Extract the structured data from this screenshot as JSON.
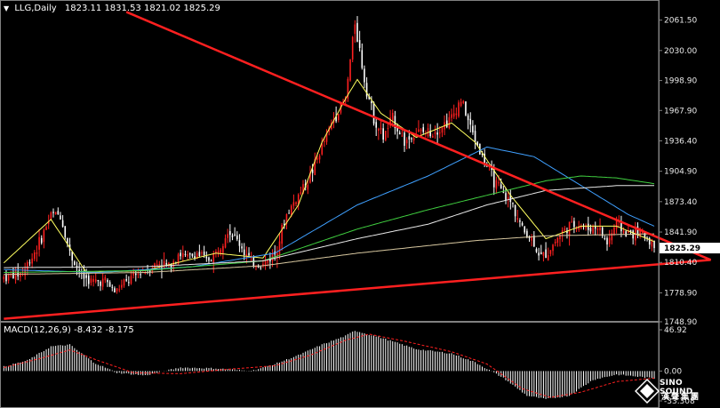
{
  "header": {
    "symbol": "LLG,Daily",
    "ohlc": "1823.11 1831.53 1821.02 1825.29"
  },
  "price_axis": {
    "ticks": [
      "2061.50",
      "2030.00",
      "1998.90",
      "1967.90",
      "1936.40",
      "1904.90",
      "1873.40",
      "1841.90",
      "1810.40",
      "1778.90",
      "1748.90"
    ],
    "current_price": "1825.29"
  },
  "macd_panel": {
    "label": "MACD(12,26,9) -8.432 -8.175",
    "ticks": [
      "46.92",
      "0.00",
      "-33.308"
    ]
  },
  "logo": {
    "name": "SINO SOUND",
    "sub": "漢聲集團"
  },
  "colors": {
    "background": "#000000",
    "up_candle": "#ff2020",
    "down_candle": "#ffffff",
    "trendline": "#ff2020",
    "ma_fast": "#ffff60",
    "ma_mid": "#3fa0ff",
    "ma_green": "#40d040",
    "ma_white": "#e8e8e8",
    "ma_tan": "#d8c8a0",
    "macd_signal": "#ff2020"
  },
  "chart_data": {
    "type": "candlestick",
    "symbol": "LLG",
    "timeframe": "Daily",
    "ylim": [
      1748.9,
      2075
    ],
    "last": 1825.29,
    "triangle_trendlines": [
      {
        "from": {
          "bar": 52,
          "price": 2070
        },
        "to": {
          "bar": 300,
          "price": 1813
        }
      },
      {
        "from": {
          "bar": 0,
          "price": 1752
        },
        "to": {
          "bar": 300,
          "price": 1813
        }
      }
    ],
    "price_path": [
      [
        0,
        1795
      ],
      [
        8,
        1800
      ],
      [
        15,
        1830
      ],
      [
        20,
        1860
      ],
      [
        24,
        1860
      ],
      [
        28,
        1820
      ],
      [
        33,
        1796
      ],
      [
        38,
        1790
      ],
      [
        43,
        1792
      ],
      [
        47,
        1780
      ],
      [
        52,
        1790
      ],
      [
        58,
        1800
      ],
      [
        62,
        1805
      ],
      [
        66,
        1810
      ],
      [
        70,
        1806
      ],
      [
        74,
        1820
      ],
      [
        78,
        1815
      ],
      [
        82,
        1820
      ],
      [
        86,
        1812
      ],
      [
        90,
        1820
      ],
      [
        95,
        1845
      ],
      [
        100,
        1830
      ],
      [
        105,
        1810
      ],
      [
        110,
        1808
      ],
      [
        115,
        1820
      ],
      [
        120,
        1860
      ],
      [
        125,
        1880
      ],
      [
        130,
        1900
      ],
      [
        135,
        1930
      ],
      [
        140,
        1960
      ],
      [
        145,
        1980
      ],
      [
        149,
        2060
      ],
      [
        153,
        2000
      ],
      [
        157,
        1960
      ],
      [
        161,
        1940
      ],
      [
        165,
        1960
      ],
      [
        170,
        1935
      ],
      [
        175,
        1945
      ],
      [
        180,
        1945
      ],
      [
        185,
        1950
      ],
      [
        190,
        1960
      ],
      [
        194,
        1980
      ],
      [
        198,
        1950
      ],
      [
        203,
        1920
      ],
      [
        208,
        1895
      ],
      [
        212,
        1880
      ],
      [
        216,
        1870
      ],
      [
        220,
        1845
      ],
      [
        224,
        1835
      ],
      [
        228,
        1815
      ],
      [
        232,
        1825
      ],
      [
        236,
        1840
      ],
      [
        240,
        1848
      ],
      [
        244,
        1850
      ],
      [
        248,
        1845
      ],
      [
        252,
        1848
      ],
      [
        256,
        1830
      ],
      [
        260,
        1852
      ],
      [
        264,
        1840
      ],
      [
        268,
        1842
      ],
      [
        272,
        1838
      ],
      [
        276,
        1828
      ]
    ],
    "moving_averages": {
      "fast": [
        [
          0,
          1810
        ],
        [
          20,
          1855
        ],
        [
          35,
          1800
        ],
        [
          60,
          1802
        ],
        [
          90,
          1820
        ],
        [
          110,
          1815
        ],
        [
          125,
          1870
        ],
        [
          135,
          1935
        ],
        [
          145,
          1980
        ],
        [
          150,
          2000
        ],
        [
          160,
          1965
        ],
        [
          175,
          1940
        ],
        [
          190,
          1955
        ],
        [
          200,
          1935
        ],
        [
          215,
          1880
        ],
        [
          230,
          1835
        ],
        [
          245,
          1848
        ],
        [
          260,
          1848
        ],
        [
          276,
          1832
        ]
      ],
      "mid": [
        [
          0,
          1803
        ],
        [
          40,
          1800
        ],
        [
          80,
          1806
        ],
        [
          115,
          1820
        ],
        [
          150,
          1870
        ],
        [
          180,
          1900
        ],
        [
          205,
          1930
        ],
        [
          225,
          1920
        ],
        [
          245,
          1890
        ],
        [
          265,
          1860
        ],
        [
          276,
          1848
        ]
      ],
      "green": [
        [
          0,
          1800
        ],
        [
          60,
          1802
        ],
        [
          110,
          1812
        ],
        [
          150,
          1845
        ],
        [
          180,
          1865
        ],
        [
          205,
          1880
        ],
        [
          230,
          1895
        ],
        [
          245,
          1900
        ],
        [
          260,
          1898
        ],
        [
          276,
          1892
        ]
      ],
      "white": [
        [
          0,
          1805
        ],
        [
          60,
          1806
        ],
        [
          110,
          1812
        ],
        [
          150,
          1835
        ],
        [
          180,
          1850
        ],
        [
          205,
          1870
        ],
        [
          230,
          1885
        ],
        [
          260,
          1890
        ],
        [
          276,
          1890
        ]
      ],
      "tan": [
        [
          0,
          1798
        ],
        [
          60,
          1800
        ],
        [
          110,
          1807
        ],
        [
          150,
          1820
        ],
        [
          200,
          1833
        ],
        [
          230,
          1838
        ],
        [
          276,
          1840
        ]
      ]
    },
    "macd": {
      "histogram": [
        [
          0,
          5
        ],
        [
          10,
          12
        ],
        [
          20,
          28
        ],
        [
          28,
          30
        ],
        [
          38,
          10
        ],
        [
          48,
          -2
        ],
        [
          60,
          -5
        ],
        [
          75,
          4
        ],
        [
          90,
          3
        ],
        [
          105,
          0
        ],
        [
          115,
          8
        ],
        [
          125,
          18
        ],
        [
          135,
          30
        ],
        [
          145,
          40
        ],
        [
          149,
          46
        ],
        [
          160,
          38
        ],
        [
          175,
          25
        ],
        [
          190,
          20
        ],
        [
          200,
          10
        ],
        [
          212,
          -8
        ],
        [
          222,
          -28
        ],
        [
          230,
          -32
        ],
        [
          240,
          -28
        ],
        [
          250,
          -10
        ],
        [
          260,
          -4
        ],
        [
          268,
          -6
        ],
        [
          276,
          -8.432
        ]
      ],
      "signal": [
        [
          0,
          4
        ],
        [
          15,
          14
        ],
        [
          28,
          24
        ],
        [
          40,
          12
        ],
        [
          55,
          -2
        ],
        [
          75,
          -3
        ],
        [
          95,
          2
        ],
        [
          115,
          6
        ],
        [
          130,
          18
        ],
        [
          145,
          35
        ],
        [
          155,
          42
        ],
        [
          170,
          34
        ],
        [
          190,
          22
        ],
        [
          205,
          8
        ],
        [
          220,
          -20
        ],
        [
          232,
          -30
        ],
        [
          245,
          -24
        ],
        [
          260,
          -12
        ],
        [
          276,
          -8.175
        ]
      ]
    }
  }
}
